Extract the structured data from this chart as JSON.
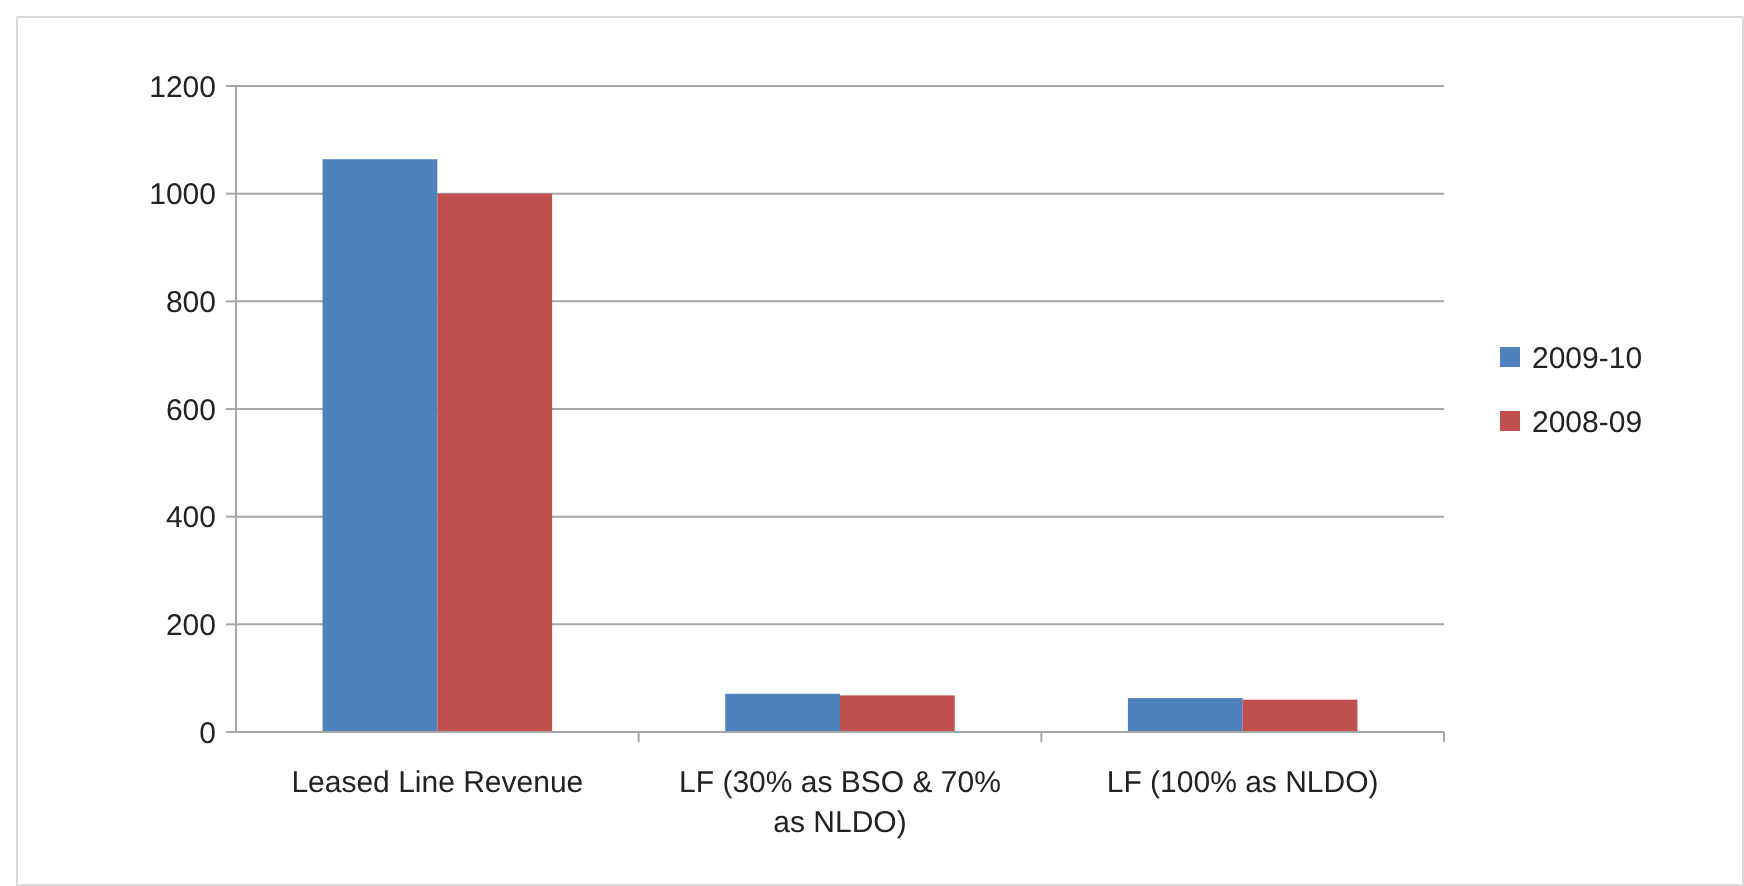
{
  "chart_data": {
    "type": "bar",
    "categories": [
      "Leased Line Revenue",
      "LF (30% as BSO & 70% as NLDO)",
      "LF (100% as NLDO)"
    ],
    "series": [
      {
        "name": "2009-10",
        "color": "#4f81bd",
        "values": [
          1064,
          71,
          63
        ]
      },
      {
        "name": "2008-09",
        "color": "#c0504d",
        "values": [
          1000,
          68,
          60
        ]
      }
    ],
    "ylim": [
      0,
      1200
    ],
    "yticks": [
      0,
      200,
      400,
      600,
      800,
      1000,
      1200
    ],
    "grid": "y",
    "legend": "right"
  }
}
